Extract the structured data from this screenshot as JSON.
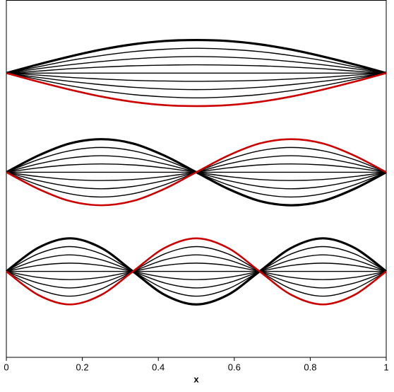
{
  "chart_data": {
    "type": "line",
    "xlabel": "x",
    "x": [
      0,
      0.0833,
      0.1667,
      0.25,
      0.3333,
      0.4167,
      0.5,
      0.5833,
      0.6667,
      0.75,
      0.8333,
      0.9167,
      1
    ],
    "xlim": [
      0,
      1
    ],
    "xticks": [
      0,
      0.2,
      0.4,
      0.6,
      0.8,
      1
    ],
    "ylim": [
      0,
      10.8
    ],
    "grid": false,
    "series": [
      {
        "color": "#000000",
        "line_width": 3.2,
        "values": [
          8.6,
          8.86,
          9.1,
          9.31,
          9.47,
          9.57,
          9.6,
          9.57,
          9.47,
          9.31,
          9.1,
          8.86,
          8.6
        ]
      },
      {
        "color": "#000000",
        "line_width": 1.4,
        "values": [
          8.6,
          8.79,
          8.98,
          9.13,
          9.25,
          9.32,
          9.35,
          9.32,
          9.25,
          9.13,
          8.98,
          8.79,
          8.6
        ]
      },
      {
        "color": "#000000",
        "line_width": 1.4,
        "values": [
          8.6,
          8.73,
          8.85,
          8.95,
          9.03,
          9.08,
          9.1,
          9.08,
          9.03,
          8.95,
          8.85,
          8.73,
          8.6
        ]
      },
      {
        "color": "#000000",
        "line_width": 1.4,
        "values": [
          8.6,
          8.66,
          8.73,
          8.78,
          8.82,
          8.84,
          8.85,
          8.84,
          8.82,
          8.78,
          8.73,
          8.66,
          8.6
        ]
      },
      {
        "color": "#000000",
        "line_width": 1.4,
        "values": [
          8.6,
          8.6,
          8.6,
          8.6,
          8.6,
          8.6,
          8.6,
          8.6,
          8.6,
          8.6,
          8.6,
          8.6,
          8.6
        ]
      },
      {
        "color": "#000000",
        "line_width": 1.4,
        "values": [
          8.6,
          8.54,
          8.47,
          8.42,
          8.38,
          8.36,
          8.35,
          8.36,
          8.38,
          8.42,
          8.47,
          8.54,
          8.6
        ]
      },
      {
        "color": "#000000",
        "line_width": 1.4,
        "values": [
          8.6,
          8.47,
          8.35,
          8.25,
          8.17,
          8.12,
          8.1,
          8.12,
          8.17,
          8.25,
          8.35,
          8.47,
          8.6
        ]
      },
      {
        "color": "#000000",
        "line_width": 1.4,
        "values": [
          8.6,
          8.41,
          8.22,
          8.07,
          7.95,
          7.88,
          7.85,
          7.88,
          7.95,
          8.07,
          8.22,
          8.41,
          8.6
        ]
      },
      {
        "color": "#cc0000",
        "line_width": 2.6,
        "values": [
          8.6,
          8.34,
          8.1,
          7.89,
          7.73,
          7.63,
          7.6,
          7.63,
          7.73,
          7.89,
          8.1,
          8.34,
          8.6
        ]
      },
      {
        "color": "#000000",
        "line_width": 3.2,
        "values": [
          5.6,
          6.1,
          6.47,
          6.6,
          6.47,
          6.1,
          5.6,
          5.1,
          4.73,
          4.6,
          4.73,
          5.1,
          5.6
        ]
      },
      {
        "color": "#000000",
        "line_width": 1.4,
        "values": [
          5.6,
          5.98,
          6.25,
          6.35,
          6.25,
          5.98,
          5.6,
          5.22,
          4.95,
          4.85,
          4.95,
          5.22,
          5.6
        ]
      },
      {
        "color": "#000000",
        "line_width": 1.4,
        "values": [
          5.6,
          5.85,
          6.03,
          6.1,
          6.03,
          5.85,
          5.6,
          5.35,
          5.17,
          5.1,
          5.17,
          5.35,
          5.6
        ]
      },
      {
        "color": "#000000",
        "line_width": 1.4,
        "values": [
          5.6,
          5.73,
          5.82,
          5.85,
          5.82,
          5.73,
          5.6,
          5.47,
          5.38,
          5.35,
          5.38,
          5.47,
          5.6
        ]
      },
      {
        "color": "#000000",
        "line_width": 1.4,
        "values": [
          5.6,
          5.6,
          5.6,
          5.6,
          5.6,
          5.6,
          5.6,
          5.6,
          5.6,
          5.6,
          5.6,
          5.6,
          5.6
        ]
      },
      {
        "color": "#000000",
        "line_width": 1.4,
        "values": [
          5.6,
          5.47,
          5.38,
          5.35,
          5.38,
          5.47,
          5.6,
          5.73,
          5.82,
          5.85,
          5.82,
          5.73,
          5.6
        ]
      },
      {
        "color": "#000000",
        "line_width": 1.4,
        "values": [
          5.6,
          5.35,
          5.17,
          5.1,
          5.17,
          5.35,
          5.6,
          5.85,
          6.03,
          6.1,
          6.03,
          5.85,
          5.6
        ]
      },
      {
        "color": "#000000",
        "line_width": 1.4,
        "values": [
          5.6,
          5.22,
          4.95,
          4.85,
          4.95,
          5.22,
          5.6,
          5.98,
          6.25,
          6.35,
          6.25,
          5.98,
          5.6
        ]
      },
      {
        "color": "#cc0000",
        "line_width": 2.6,
        "values": [
          5.6,
          5.1,
          4.73,
          4.6,
          4.73,
          5.1,
          5.6,
          6.1,
          6.47,
          6.6,
          6.47,
          6.1,
          5.6
        ]
      },
      {
        "color": "#000000",
        "line_width": 3.2,
        "values": [
          2.6,
          3.31,
          3.6,
          3.31,
          2.6,
          1.89,
          1.6,
          1.89,
          2.6,
          3.31,
          3.6,
          3.31,
          2.6
        ]
      },
      {
        "color": "#000000",
        "line_width": 1.4,
        "values": [
          2.6,
          3.13,
          3.35,
          3.13,
          2.6,
          2.07,
          1.85,
          2.07,
          2.6,
          3.13,
          3.35,
          3.13,
          2.6
        ]
      },
      {
        "color": "#000000",
        "line_width": 1.4,
        "values": [
          2.6,
          2.95,
          3.1,
          2.95,
          2.6,
          2.25,
          2.1,
          2.25,
          2.6,
          2.95,
          3.1,
          2.95,
          2.6
        ]
      },
      {
        "color": "#000000",
        "line_width": 1.4,
        "values": [
          2.6,
          2.78,
          2.85,
          2.78,
          2.6,
          2.42,
          2.35,
          2.42,
          2.6,
          2.78,
          2.85,
          2.78,
          2.6
        ]
      },
      {
        "color": "#000000",
        "line_width": 1.4,
        "values": [
          2.6,
          2.6,
          2.6,
          2.6,
          2.6,
          2.6,
          2.6,
          2.6,
          2.6,
          2.6,
          2.6,
          2.6,
          2.6
        ]
      },
      {
        "color": "#000000",
        "line_width": 1.4,
        "values": [
          2.6,
          2.42,
          2.35,
          2.42,
          2.6,
          2.78,
          2.85,
          2.78,
          2.6,
          2.42,
          2.35,
          2.42,
          2.6
        ]
      },
      {
        "color": "#000000",
        "line_width": 1.4,
        "values": [
          2.6,
          2.25,
          2.1,
          2.25,
          2.6,
          2.95,
          3.1,
          2.95,
          2.6,
          2.25,
          2.1,
          2.25,
          2.6
        ]
      },
      {
        "color": "#000000",
        "line_width": 1.4,
        "values": [
          2.6,
          2.07,
          1.85,
          2.07,
          2.6,
          3.13,
          3.35,
          3.13,
          2.6,
          2.07,
          1.85,
          2.07,
          2.6
        ]
      },
      {
        "color": "#cc0000",
        "line_width": 2.6,
        "values": [
          2.6,
          1.89,
          1.6,
          1.89,
          2.6,
          3.31,
          3.6,
          3.31,
          2.6,
          1.89,
          1.6,
          1.89,
          2.6
        ]
      }
    ]
  }
}
